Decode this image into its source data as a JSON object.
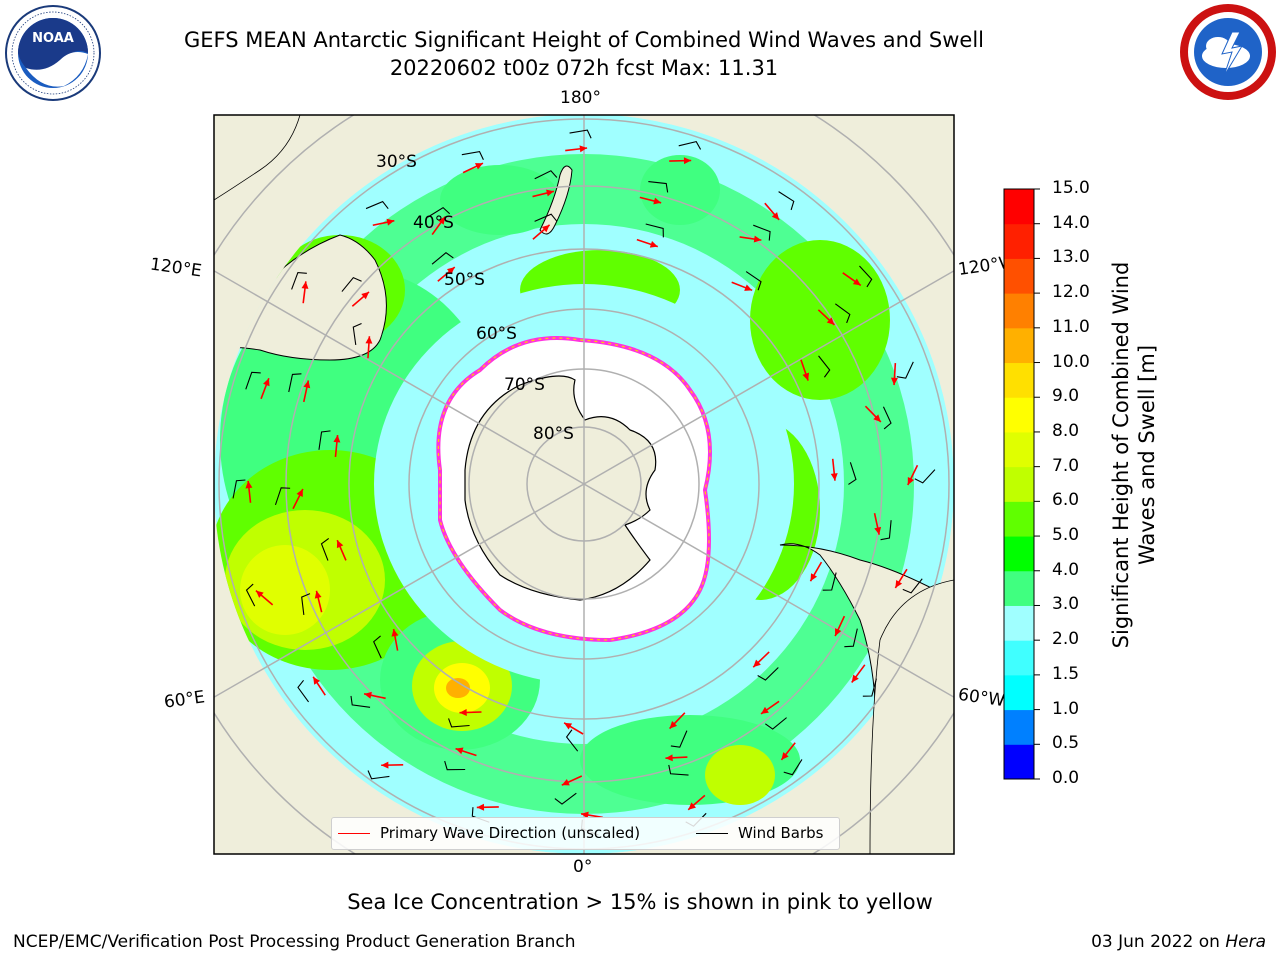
{
  "header": {
    "title_line1": "GEFS MEAN Antarctic Significant Height of Combined Wind Waves and Swell",
    "title_line2": "20220602 t00z 072h fcst   Max: 11.31"
  },
  "logos": {
    "left": {
      "text": "NOAA",
      "ring_text": "NATIONAL OCEANIC AND ATMOSPHERIC ADMINISTRATION · U.S. DEPARTMENT OF COMMERCE"
    },
    "right": {
      "ring_text": "NATIONAL WEATHER SERVICE"
    }
  },
  "map": {
    "longitude_labels": {
      "top": "180°",
      "bottom": "0°",
      "upper_left": "120°E",
      "upper_right": "120°W",
      "lower_left": "60°E",
      "lower_right": "60°W"
    },
    "latitude_labels": [
      "30°S",
      "40°S",
      "50°S",
      "60°S",
      "70°S",
      "80°S"
    ]
  },
  "legend": {
    "wave_label": "Primary Wave Direction (unscaled)",
    "wind_label": "Wind Barbs",
    "wave_color": "#ff0000",
    "wind_color": "#000000"
  },
  "colorbar": {
    "label": "Significant Height of Combined Wind Waves and Swell [m]",
    "ticks": [
      "0.0",
      "0.5",
      "1.0",
      "1.5",
      "2.0",
      "3.0",
      "4.0",
      "5.0",
      "6.0",
      "7.0",
      "8.0",
      "9.0",
      "10.0",
      "11.0",
      "12.0",
      "13.0",
      "14.0",
      "15.0"
    ],
    "colors": [
      "#0000ff",
      "#0080ff",
      "#00ffff",
      "#40ffff",
      "#a0ffff",
      "#40ff80",
      "#00ff00",
      "#60ff00",
      "#c0ff00",
      "#e0ff00",
      "#ffff00",
      "#ffe000",
      "#ffb000",
      "#ff8000",
      "#ff5000",
      "#ff2000",
      "#ff0000"
    ]
  },
  "footer": {
    "note": "Sea Ice Concentration > 15% is shown in pink to yellow",
    "left": "NCEP/EMC/Verification Post Processing Product Generation Branch",
    "right_date": "03 Jun 2022 on ",
    "right_host": "Hera"
  }
}
